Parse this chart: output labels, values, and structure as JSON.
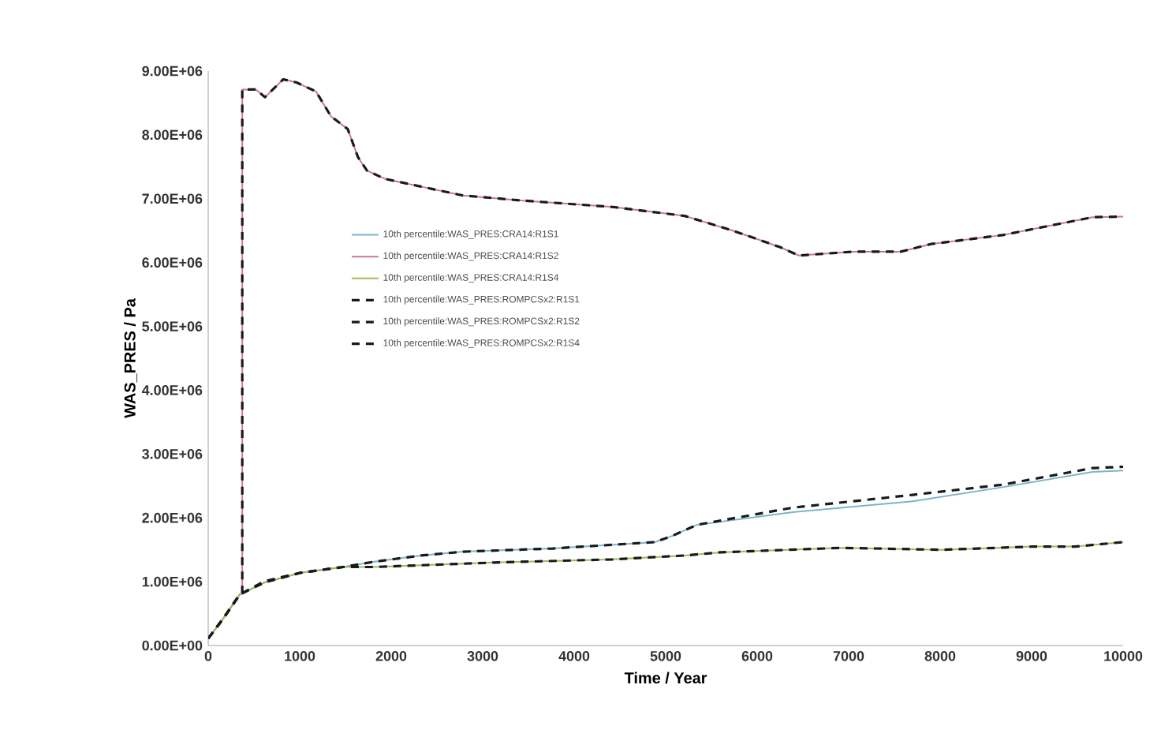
{
  "chart_data": {
    "type": "line",
    "xlabel": "Time / Year",
    "ylabel": "WAS_PRES / Pa",
    "xlim": [
      0,
      10000
    ],
    "xticks": [
      0,
      1000,
      2000,
      3000,
      4000,
      5000,
      6000,
      7000,
      8000,
      9000,
      10000
    ],
    "ylim": [
      0,
      9000000
    ],
    "yticks": [
      {
        "value": 0,
        "label": "0.00E+00"
      },
      {
        "value": 1000000,
        "label": "1.00E+06"
      },
      {
        "value": 2000000,
        "label": "2.00E+06"
      },
      {
        "value": 3000000,
        "label": "3.00E+06"
      },
      {
        "value": 4000000,
        "label": "4.00E+06"
      },
      {
        "value": 5000000,
        "label": "5.00E+06"
      },
      {
        "value": 6000000,
        "label": "6.00E+06"
      },
      {
        "value": 7000000,
        "label": "7.00E+06"
      },
      {
        "value": 8000000,
        "label": "8.00E+06"
      },
      {
        "value": 9000000,
        "label": "9.00E+06"
      }
    ],
    "grid": false,
    "legend": "left",
    "marker": "none",
    "series": [
      {
        "name": "10th percentile:WAS_PRES:CRA14:R1S1",
        "color": "#7fb3c8",
        "line_style": "solid",
        "x": [
          0,
          163,
          345,
          620,
          1012,
          1473,
          1801,
          2325,
          2785,
          3765,
          4880,
          5077,
          5340,
          6390,
          7700,
          8683,
          9667,
          10000
        ],
        "values": [
          110000,
          420000,
          800000,
          990000,
          1140000,
          1230000,
          1310000,
          1410000,
          1470000,
          1520000,
          1620000,
          1720000,
          1890000,
          2090000,
          2260000,
          2480000,
          2720000,
          2740000
        ]
      },
      {
        "name": "10th percentile:WAS_PRES:CRA14:R1S2",
        "color": "#c97a8a",
        "line_style": "solid",
        "x": [
          0,
          163,
          345,
          372,
          372,
          522,
          620,
          820,
          965,
          1177,
          1342,
          1525,
          1637,
          1735,
          1932,
          2455,
          2785,
          3440,
          4423,
          5207,
          5733,
          6252,
          6454,
          7045,
          7569,
          7900,
          8683,
          9667,
          10000
        ],
        "values": [
          110000,
          420000,
          800000,
          820000,
          8710000,
          8710000,
          8590000,
          8870000,
          8820000,
          8680000,
          8290000,
          8090000,
          7650000,
          7440000,
          7310000,
          7150000,
          7050000,
          6970000,
          6870000,
          6730000,
          6500000,
          6240000,
          6110000,
          6170000,
          6170000,
          6290000,
          6430000,
          6710000,
          6720000
        ]
      },
      {
        "name": "10th percentile:WAS_PRES:CRA14:R1S4",
        "color": "#9bbb59",
        "line_style": "solid",
        "x": [
          0,
          163,
          345,
          620,
          1012,
          1473,
          1801,
          3130,
          4423,
          5207,
          5600,
          6918,
          8024,
          9010,
          9470,
          10000
        ],
        "values": [
          110000,
          420000,
          800000,
          990000,
          1140000,
          1230000,
          1230000,
          1300000,
          1350000,
          1410000,
          1460000,
          1530000,
          1500000,
          1550000,
          1550000,
          1620000
        ]
      },
      {
        "name": "10th percentile:WAS_PRES:ROMPCSx2:R1S1",
        "color": "#1a1a1a",
        "line_style": "dashed",
        "x": [
          0,
          163,
          345,
          620,
          1012,
          1473,
          1801,
          2325,
          2785,
          3765,
          4880,
          5077,
          5340,
          6390,
          7700,
          8683,
          9667,
          10000
        ],
        "values": [
          110000,
          420000,
          800000,
          1010000,
          1140000,
          1230000,
          1310000,
          1410000,
          1470000,
          1520000,
          1620000,
          1720000,
          1890000,
          2160000,
          2360000,
          2520000,
          2780000,
          2800000
        ]
      },
      {
        "name": "10th percentile:WAS_PRES:ROMPCSx2:R1S2",
        "color": "#1a1a1a",
        "line_style": "dashed",
        "x": [
          0,
          163,
          345,
          372,
          372,
          522,
          620,
          820,
          965,
          1177,
          1342,
          1525,
          1637,
          1735,
          1932,
          2455,
          2785,
          3440,
          4423,
          5207,
          5733,
          6252,
          6454,
          7045,
          7569,
          7900,
          8683,
          9667,
          10000
        ],
        "values": [
          110000,
          420000,
          800000,
          820000,
          8710000,
          8710000,
          8590000,
          8870000,
          8820000,
          8680000,
          8290000,
          8090000,
          7650000,
          7440000,
          7310000,
          7150000,
          7050000,
          6970000,
          6870000,
          6730000,
          6500000,
          6240000,
          6110000,
          6170000,
          6170000,
          6290000,
          6430000,
          6710000,
          6720000
        ]
      },
      {
        "name": "10th percentile:WAS_PRES:ROMPCSx2:R1S4",
        "color": "#1a1a1a",
        "line_style": "dashed",
        "x": [
          0,
          163,
          345,
          620,
          1012,
          1473,
          1801,
          3130,
          4423,
          5207,
          5600,
          6918,
          8024,
          9010,
          9470,
          10000
        ],
        "values": [
          110000,
          420000,
          800000,
          990000,
          1140000,
          1230000,
          1230000,
          1300000,
          1350000,
          1410000,
          1460000,
          1530000,
          1500000,
          1550000,
          1550000,
          1620000
        ]
      }
    ]
  }
}
